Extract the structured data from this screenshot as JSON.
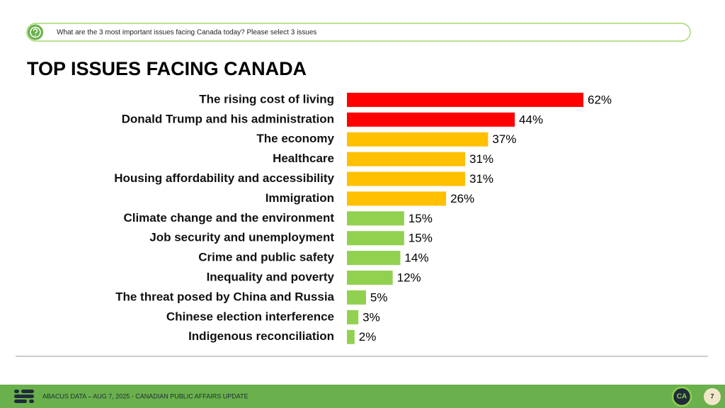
{
  "header": {
    "question": "What are the 3 most important issues facing Canada today? Please select 3 issues"
  },
  "chart_data": {
    "type": "bar",
    "orientation": "horizontal",
    "title": "TOP ISSUES FACING CANADA",
    "categories": [
      "The rising cost of living",
      "Donald Trump and his administration",
      "The economy",
      "Healthcare",
      "Housing affordability and accessibility",
      "Immigration",
      "Climate change and the environment",
      "Job security and unemployment",
      "Crime and public safety",
      "Inequality and poverty",
      "The threat posed by China and Russia",
      "Chinese election interference",
      "Indigenous reconciliation"
    ],
    "values": [
      62,
      44,
      37,
      31,
      31,
      26,
      15,
      15,
      14,
      12,
      5,
      3,
      2
    ],
    "value_labels": [
      "62%",
      "44%",
      "37%",
      "31%",
      "31%",
      "26%",
      "15%",
      "15%",
      "14%",
      "12%",
      "5%",
      "3%",
      "2%"
    ],
    "colors": [
      "#ff0000",
      "#ff0000",
      "#ffc000",
      "#ffc000",
      "#ffc000",
      "#ffc000",
      "#92d050",
      "#92d050",
      "#92d050",
      "#92d050",
      "#92d050",
      "#92d050",
      "#92d050"
    ]
  },
  "footer": {
    "source": "ABACUS DATA – AUG 7, 2025 - CANADIAN PUBLIC AFFAIRS UPDATE",
    "logo": "CA",
    "page": "7"
  }
}
